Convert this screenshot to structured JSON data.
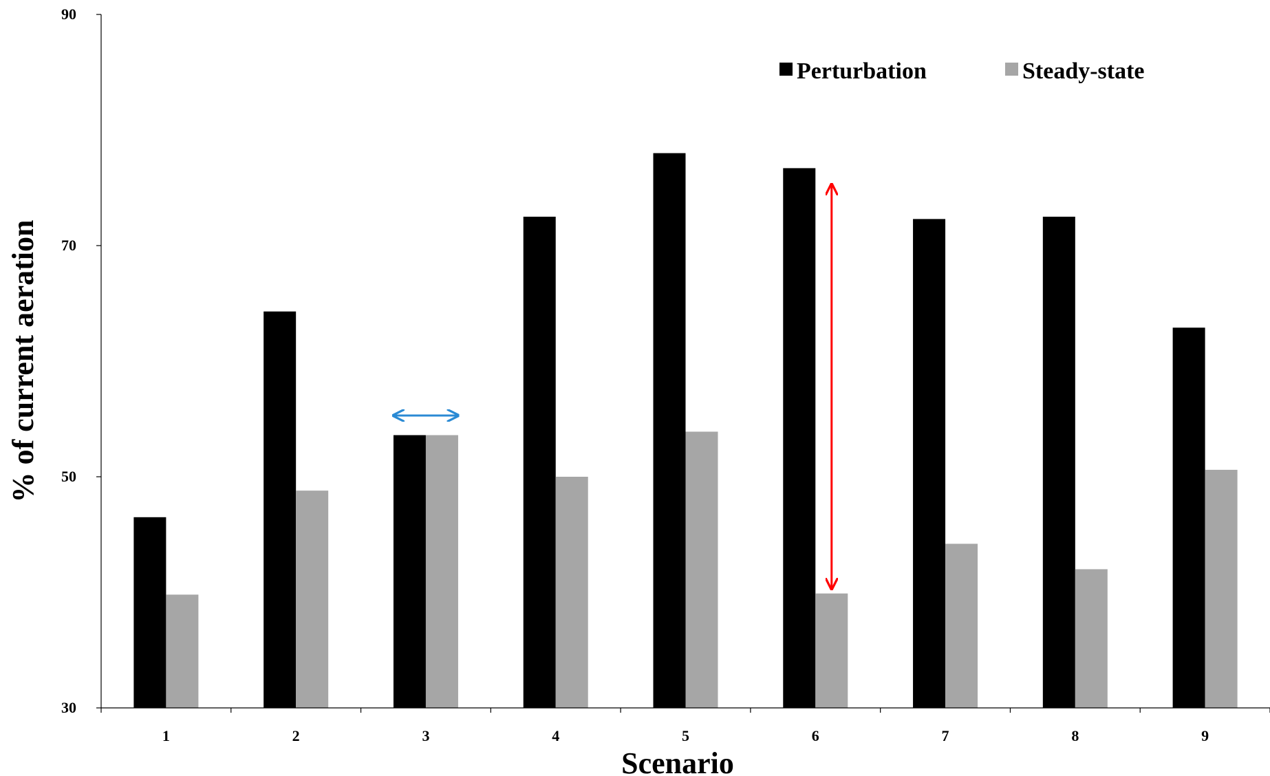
{
  "chart_data": {
    "type": "bar",
    "title": "",
    "xlabel": "Scenario",
    "ylabel": "% of current aeration",
    "categories": [
      "1",
      "2",
      "3",
      "4",
      "5",
      "6",
      "7",
      "8",
      "9"
    ],
    "ylim": [
      30,
      90
    ],
    "yticks": [
      30,
      50,
      70,
      90
    ],
    "grid": false,
    "legend_position": "top-right",
    "series": [
      {
        "name": "Perturbation",
        "color": "#000000",
        "values": [
          46.5,
          64.3,
          53.6,
          72.5,
          78.0,
          76.7,
          72.3,
          72.5,
          62.9
        ]
      },
      {
        "name": "Steady-state",
        "color": "#a6a6a6",
        "values": [
          39.8,
          48.8,
          53.6,
          50.0,
          53.9,
          39.9,
          44.2,
          42.0,
          50.6
        ]
      }
    ],
    "annotations": [
      {
        "type": "double-arrow-horizontal",
        "category": "3",
        "color": "#2a8ad4",
        "y": 55.3,
        "meaning": "equal values"
      },
      {
        "type": "double-arrow-vertical",
        "category": "6",
        "color": "#ff0000",
        "from": 40.3,
        "to": 75.3,
        "meaning": "difference"
      }
    ]
  }
}
